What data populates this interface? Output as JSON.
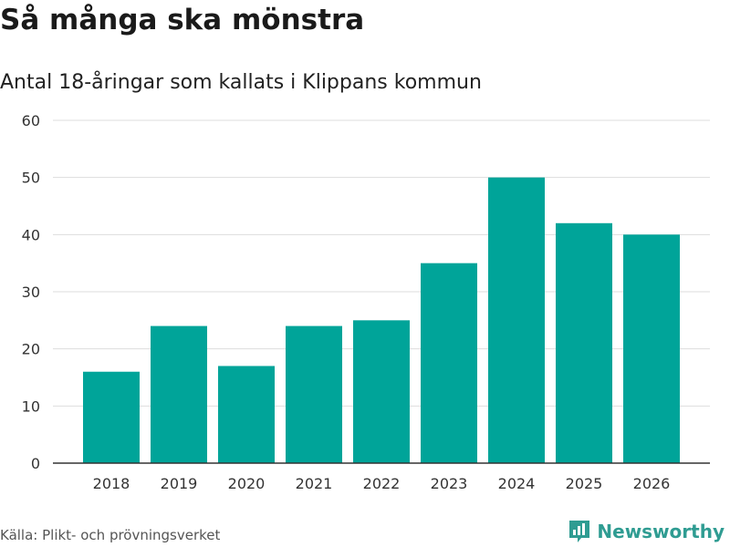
{
  "title": "Så många ska mönstra",
  "subtitle": "Antal 18-åringar som kallats i Klippans kommun",
  "source": "Källa: Plikt- och prövningsverket",
  "brand": {
    "name": "Newsworthy",
    "icon": "bar-chart-logo-icon",
    "color": "#2f9c92"
  },
  "colors": {
    "bar": "#00a499",
    "grid": "#dddddd",
    "axis": "#333333"
  },
  "chart_data": {
    "type": "bar",
    "title": "Så många ska mönstra",
    "subtitle": "Antal 18-åringar som kallats i Klippans kommun",
    "xlabel": "",
    "ylabel": "",
    "categories": [
      "2018",
      "2019",
      "2020",
      "2021",
      "2022",
      "2023",
      "2024",
      "2025",
      "2026"
    ],
    "values": [
      16,
      24,
      17,
      24,
      25,
      35,
      50,
      42,
      40
    ],
    "ylim": [
      0,
      60
    ],
    "yticks": [
      0,
      10,
      20,
      30,
      40,
      50,
      60
    ],
    "grid": true,
    "legend": "none"
  }
}
